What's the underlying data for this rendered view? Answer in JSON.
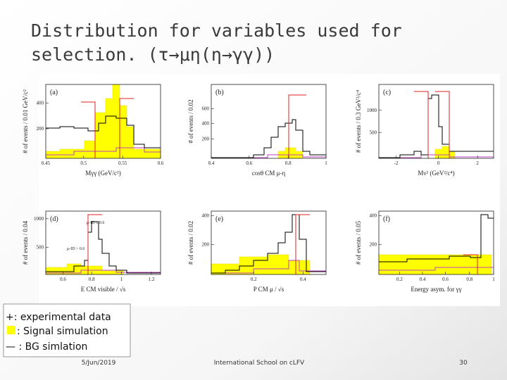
{
  "title": {
    "line1": "Distribution for variables used for",
    "line2": "selection. (τ→μη(η→γγ))"
  },
  "figure": {
    "panels": [
      {
        "tag": "(a)",
        "ylabel": "# of events / 0.01 GeV/c²",
        "xlabel": "Mγγ (GeV/c²)",
        "yticks": [
          "200",
          "400"
        ],
        "xticks": [
          "0.45",
          "0.5",
          "0.55",
          "0.6"
        ]
      },
      {
        "tag": "(b)",
        "ylabel": "# of events / 0.02",
        "xlabel": "cosθ CM μ-η",
        "yticks": [
          "200",
          "400",
          "600"
        ],
        "xticks": [
          "0.4",
          "0.6",
          "0.8",
          "1"
        ]
      },
      {
        "tag": "(c)",
        "ylabel": "# of events / 0.3 GeV²/c⁴",
        "xlabel": "Mν² (GeV²/c⁴)",
        "yticks": [
          "500",
          "1000"
        ],
        "xticks": [
          "-2",
          "0",
          "2"
        ]
      },
      {
        "tag": "(d)",
        "ylabel": "# of events / 0.04",
        "xlabel": "E CM visible / √s",
        "yticks": [
          "500",
          "1000"
        ],
        "xticks": [
          "0.6",
          "0.8",
          "1",
          "1.2"
        ],
        "annotations": [
          "μ-ID ≤ 0.6",
          "μ-ID > 0.6"
        ]
      },
      {
        "tag": "(e)",
        "ylabel": "# of events / 0.02",
        "xlabel": "P CM μ / √s",
        "yticks": [
          "200",
          "400"
        ],
        "xticks": [
          "0.2",
          "0.4"
        ]
      },
      {
        "tag": "(f)",
        "ylabel": "# of events / 0.05",
        "xlabel": "Energy asym. for γγ",
        "yticks": [
          "200",
          "400"
        ],
        "xticks": [
          "0.2",
          "0.4",
          "0.6",
          "0.8",
          "1"
        ]
      }
    ]
  },
  "legend": {
    "data": "+: experimental  data",
    "signal": ": Signal simulation",
    "bg": "— : BG  simlation"
  },
  "footer": {
    "date": "5/Jun/2019",
    "event": "International School on cLFV",
    "page": "30"
  }
}
